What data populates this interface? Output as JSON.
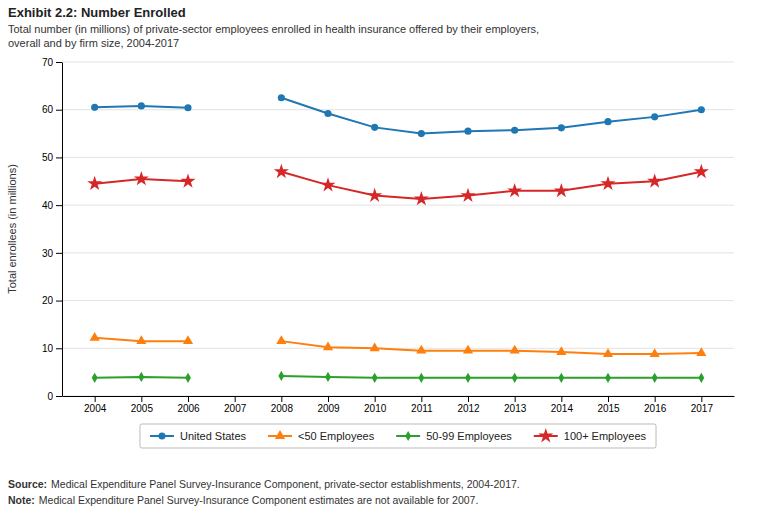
{
  "chart_data": {
    "type": "line",
    "title": "Exhibit 2.2: Number Enrolled",
    "subtitle": [
      "Total number (in millions) of private-sector employees enrolled in health insurance offered by their employers,",
      "overall and by firm size, 2004-2017"
    ],
    "ylabel": "Total enrollees (in millions)",
    "x": [
      2004,
      2005,
      2006,
      2007,
      2008,
      2009,
      2010,
      2011,
      2012,
      2013,
      2014,
      2015,
      2016,
      2017
    ],
    "xlim": [
      2003.3,
      2017.7
    ],
    "xticks": [
      2004,
      2005,
      2006,
      2007,
      2008,
      2009,
      2010,
      2011,
      2012,
      2013,
      2014,
      2015,
      2016,
      2017
    ],
    "ylim": [
      0,
      70
    ],
    "yticks": [
      0,
      10,
      20,
      30,
      40,
      50,
      60,
      70
    ],
    "grid": true,
    "legend": "bottom",
    "series": [
      {
        "name": "United States",
        "marker": "circle",
        "values": [
          60.5,
          60.8,
          60.4,
          null,
          62.5,
          59.2,
          56.3,
          55.0,
          55.5,
          55.7,
          56.2,
          57.5,
          58.5,
          60.0
        ]
      },
      {
        "name": "<50 Employees",
        "marker": "triangle",
        "values": [
          12.2,
          11.5,
          11.5,
          null,
          11.5,
          10.2,
          10.0,
          9.5,
          9.5,
          9.5,
          9.2,
          8.8,
          8.8,
          9.0
        ]
      },
      {
        "name": "50-99 Employees",
        "marker": "diamond",
        "values": [
          3.8,
          4.0,
          3.8,
          null,
          4.2,
          4.0,
          3.8,
          3.8,
          3.8,
          3.8,
          3.8,
          3.8,
          3.8,
          3.8
        ]
      },
      {
        "name": "100+ Employees",
        "marker": "star",
        "values": [
          44.5,
          45.5,
          45.0,
          null,
          47.0,
          44.2,
          42.0,
          41.3,
          42.0,
          43.0,
          43.0,
          44.5,
          45.0,
          47.0
        ]
      }
    ],
    "annotations": [
      {
        "heading": "Source:",
        "text": "Medical Expenditure Panel Survey-Insurance Component, private-sector establishments, 2004-2017."
      },
      {
        "heading": "Note:",
        "text": "Medical Expenditure Panel Survey-Insurance Component estimates are not available for 2007."
      }
    ]
  }
}
